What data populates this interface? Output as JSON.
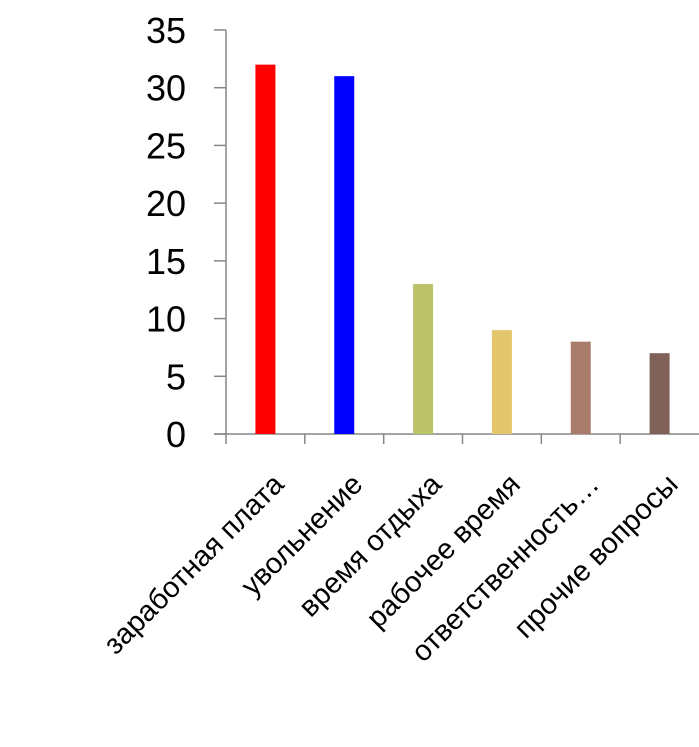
{
  "chart_data": {
    "type": "bar",
    "categories": [
      "заработная плата",
      "увольнение",
      "время отдыха",
      "рабочее время",
      "ответственность…",
      "прочие вопросы"
    ],
    "values": [
      32,
      31,
      13,
      9,
      8,
      7
    ],
    "colors": [
      "#ff0000",
      "#0000ff",
      "#bcc46a",
      "#e3c66c",
      "#a97b6b",
      "#7f6159"
    ],
    "ylim": [
      0,
      35
    ],
    "yticks": [
      0,
      5,
      10,
      15,
      20,
      25,
      30,
      35
    ],
    "title": "",
    "xlabel": "",
    "ylabel": "",
    "grid": false,
    "legend": "none"
  }
}
